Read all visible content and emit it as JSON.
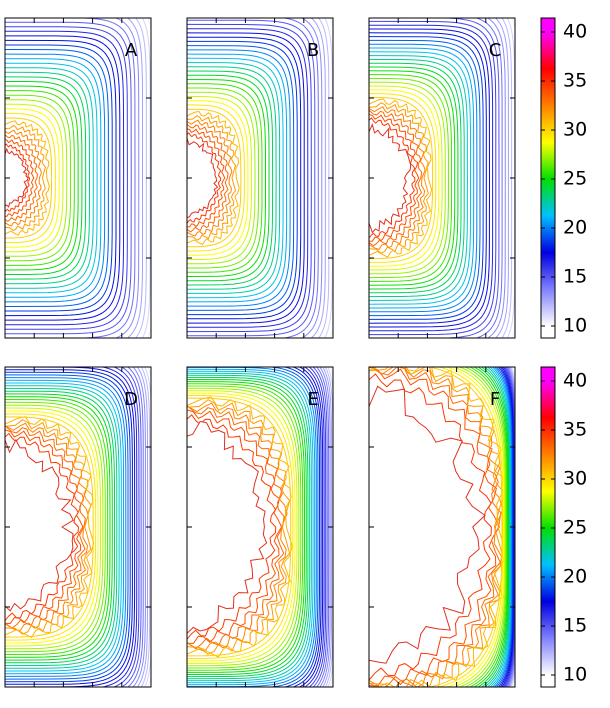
{
  "panels": [
    {
      "label": "A"
    },
    {
      "label": "B"
    },
    {
      "label": "C"
    },
    {
      "label": "D"
    },
    {
      "label": "E"
    },
    {
      "label": "F"
    }
  ],
  "colorbars": [
    {
      "lim": [
        10,
        40
      ],
      "ticks": [
        10,
        15,
        20,
        25,
        30,
        35,
        40
      ]
    },
    {
      "lim": [
        10,
        40
      ],
      "ticks": [
        10,
        15,
        20,
        25,
        30,
        35,
        40
      ]
    }
  ],
  "colormap": [
    "#ffffff",
    "#8080ff",
    "#0000e0",
    "#00c0ff",
    "#00e000",
    "#ffff00",
    "#ff8000",
    "#ff0000",
    "#ff00ff"
  ]
}
